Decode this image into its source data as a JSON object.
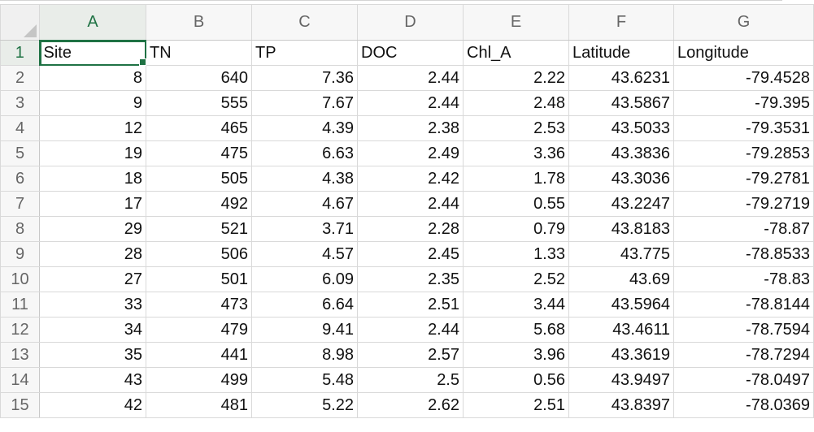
{
  "columns": [
    "A",
    "B",
    "C",
    "D",
    "E",
    "F",
    "G"
  ],
  "rows": [
    {
      "n": "1",
      "cells": [
        "Site",
        "TN",
        "TP",
        "DOC",
        "Chl_A",
        "Latitude",
        "Longitude"
      ]
    },
    {
      "n": "2",
      "cells": [
        "8",
        "640",
        "7.36",
        "2.44",
        "2.22",
        "43.6231",
        "-79.4528"
      ]
    },
    {
      "n": "3",
      "cells": [
        "9",
        "555",
        "7.67",
        "2.44",
        "2.48",
        "43.5867",
        "-79.395"
      ]
    },
    {
      "n": "4",
      "cells": [
        "12",
        "465",
        "4.39",
        "2.38",
        "2.53",
        "43.5033",
        "-79.3531"
      ]
    },
    {
      "n": "5",
      "cells": [
        "19",
        "475",
        "6.63",
        "2.49",
        "3.36",
        "43.3836",
        "-79.2853"
      ]
    },
    {
      "n": "6",
      "cells": [
        "18",
        "505",
        "4.38",
        "2.42",
        "1.78",
        "43.3036",
        "-79.2781"
      ]
    },
    {
      "n": "7",
      "cells": [
        "17",
        "492",
        "4.67",
        "2.44",
        "0.55",
        "43.2247",
        "-79.2719"
      ]
    },
    {
      "n": "8",
      "cells": [
        "29",
        "521",
        "3.71",
        "2.28",
        "0.79",
        "43.8183",
        "-78.87"
      ]
    },
    {
      "n": "9",
      "cells": [
        "28",
        "506",
        "4.57",
        "2.45",
        "1.33",
        "43.775",
        "-78.8533"
      ]
    },
    {
      "n": "10",
      "cells": [
        "27",
        "501",
        "6.09",
        "2.35",
        "2.52",
        "43.69",
        "-78.83"
      ]
    },
    {
      "n": "11",
      "cells": [
        "33",
        "473",
        "6.64",
        "2.51",
        "3.44",
        "43.5964",
        "-78.8144"
      ]
    },
    {
      "n": "12",
      "cells": [
        "34",
        "479",
        "9.41",
        "2.44",
        "5.68",
        "43.4611",
        "-78.7594"
      ]
    },
    {
      "n": "13",
      "cells": [
        "35",
        "441",
        "8.98",
        "2.57",
        "3.96",
        "43.3619",
        "-78.7294"
      ]
    },
    {
      "n": "14",
      "cells": [
        "43",
        "499",
        "5.48",
        "2.5",
        "0.56",
        "43.9497",
        "-78.0497"
      ]
    },
    {
      "n": "15",
      "cells": [
        "42",
        "481",
        "5.22",
        "2.62",
        "2.51",
        "43.8397",
        "-78.0369"
      ]
    }
  ],
  "colors": {
    "accent": "#1f7244",
    "header_bg": "#f7f7f7",
    "gridline": "#d9d9d9"
  }
}
